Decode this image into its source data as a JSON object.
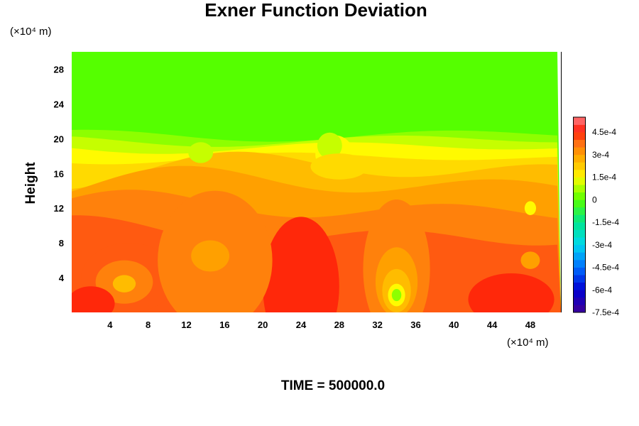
{
  "chart_data": {
    "type": "heatmap",
    "title": "Exner Function Deviation",
    "ylabel": "Height",
    "xlabel": "",
    "x_unit": "(×10⁴ m)",
    "y_unit": "(×10⁴ m)",
    "x_ticks": [
      4,
      8,
      12,
      16,
      20,
      24,
      28,
      32,
      36,
      40,
      44,
      48
    ],
    "y_ticks": [
      4,
      8,
      12,
      16,
      20,
      24,
      28
    ],
    "xlim": [
      0,
      51.2
    ],
    "ylim": [
      0,
      30
    ],
    "footer": "TIME = 500000.0",
    "colorbar": {
      "labels": [
        "4.5e-4",
        "3e-4",
        "1.5e-4",
        "0",
        "-1.5e-4",
        "-3e-4",
        "-4.5e-4",
        "-6e-4",
        "-7.5e-4"
      ],
      "values": [
        0.00045,
        0.0003,
        0.00015,
        0,
        -0.00015,
        -0.0003,
        -0.00045,
        -0.0006,
        -0.00075
      ],
      "min": -0.00075,
      "max": 0.00055
    },
    "field_layers": [
      {
        "level": 0.0,
        "y_top": 30.0
      },
      {
        "level": 5e-05,
        "y_top": 20.4
      },
      {
        "level": 0.0001,
        "y_top": 19.8
      },
      {
        "level": 0.00015,
        "y_top": 19.0
      },
      {
        "level": 0.0002,
        "y_top": 17.8
      },
      {
        "level": 0.00025,
        "y_top": 16.5
      },
      {
        "level": 0.0003,
        "y_top": 14.8
      },
      {
        "level": 0.00035,
        "y_top": 12.0
      },
      {
        "level": 0.0004,
        "y_top": 9.0
      }
    ],
    "field_features": [
      {
        "kind": "core",
        "level": 0.00045,
        "x": 24.0,
        "y": 3.0,
        "rx": 4.0,
        "ry": 8.0
      },
      {
        "kind": "core",
        "level": 0.0004,
        "x": 6.0,
        "y": 4.0,
        "rx": 5.0,
        "ry": 4.0
      },
      {
        "kind": "core",
        "level": 0.00035,
        "x": 5.5,
        "y": 3.5,
        "rx": 3.0,
        "ry": 2.5
      },
      {
        "kind": "core",
        "level": 0.00025,
        "x": 5.5,
        "y": 3.3,
        "rx": 1.2,
        "ry": 1.0
      },
      {
        "kind": "core",
        "level": 0.00035,
        "x": 15.0,
        "y": 6.0,
        "rx": 6.0,
        "ry": 8.0
      },
      {
        "kind": "core",
        "level": 0.0003,
        "x": 14.5,
        "y": 6.5,
        "rx": 2.0,
        "ry": 1.8
      },
      {
        "kind": "core",
        "level": 0.00035,
        "x": 34.0,
        "y": 5.0,
        "rx": 3.5,
        "ry": 8.0
      },
      {
        "kind": "core",
        "level": 0.0003,
        "x": 34.0,
        "y": 3.5,
        "rx": 2.2,
        "ry": 4.0
      },
      {
        "kind": "core",
        "level": 0.00025,
        "x": 34.0,
        "y": 2.5,
        "rx": 1.5,
        "ry": 2.5
      },
      {
        "kind": "core",
        "level": 0.00015,
        "x": 34.0,
        "y": 2.0,
        "rx": 0.9,
        "ry": 1.3
      },
      {
        "kind": "core",
        "level": 5e-05,
        "x": 34.0,
        "y": 2.0,
        "rx": 0.5,
        "ry": 0.7
      },
      {
        "kind": "core",
        "level": 0.00045,
        "x": 46.0,
        "y": 1.5,
        "rx": 4.5,
        "ry": 3.0
      },
      {
        "kind": "core",
        "level": 0.00045,
        "x": 2.0,
        "y": 1.0,
        "rx": 2.5,
        "ry": 2.0
      },
      {
        "kind": "core",
        "level": 0.00015,
        "x": 48.0,
        "y": 12.0,
        "rx": 0.6,
        "ry": 0.8
      },
      {
        "kind": "core",
        "level": 0.0003,
        "x": 48.0,
        "y": 6.0,
        "rx": 1.0,
        "ry": 1.0
      },
      {
        "kind": "dip",
        "level": 0.00015,
        "x": 27.5,
        "y": 18.2,
        "rx": 2.0,
        "ry": 2.2
      },
      {
        "kind": "dip",
        "level": 0.0001,
        "x": 27.0,
        "y": 19.2,
        "rx": 1.3,
        "ry": 1.5
      },
      {
        "kind": "dip",
        "level": 0.0002,
        "x": 28.0,
        "y": 16.8,
        "rx": 3.0,
        "ry": 1.5
      },
      {
        "kind": "dip",
        "level": 0.0001,
        "x": 13.5,
        "y": 18.4,
        "rx": 1.3,
        "ry": 1.2
      }
    ]
  }
}
